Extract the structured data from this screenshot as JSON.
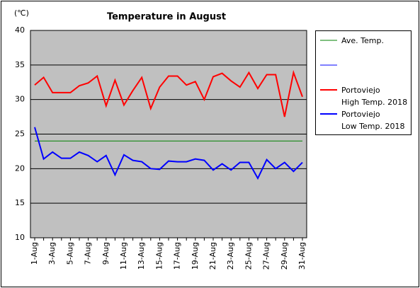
{
  "chart_data": {
    "type": "line",
    "title": "Temperature in August",
    "y_unit": "(℃)",
    "categories": [
      "1-Aug",
      null,
      "3-Aug",
      null,
      "5-Aug",
      null,
      "7-Aug",
      null,
      "9-Aug",
      null,
      "11-Aug",
      null,
      "13-Aug",
      null,
      "15-Aug",
      null,
      "17-Aug",
      null,
      "19-Aug",
      null,
      "21-Aug",
      null,
      "23-Aug",
      null,
      "25-Aug",
      null,
      "27-Aug",
      null,
      "29-Aug",
      null,
      "31-Aug"
    ],
    "series": [
      {
        "name": "Ave. Temp.",
        "color": "#008000",
        "values": [
          24,
          24,
          24,
          24,
          24,
          24,
          24,
          24,
          24,
          24,
          24,
          24,
          24,
          24,
          24,
          24,
          24,
          24,
          24,
          24,
          24,
          24,
          24,
          24,
          24,
          24,
          24,
          24,
          24,
          24,
          24
        ]
      },
      {
        "name": "Portoviejo\nHigh Temp. 2018",
        "color": "#ff0000",
        "values": [
          32.1,
          33.2,
          31.0,
          31.0,
          31.0,
          32.0,
          32.4,
          33.4,
          29.1,
          32.8,
          29.2,
          31.3,
          33.2,
          28.7,
          31.8,
          33.4,
          33.4,
          32.1,
          32.6,
          30.0,
          33.3,
          33.8,
          32.7,
          31.8,
          33.9,
          31.6,
          33.6,
          33.6,
          27.5,
          33.9,
          30.4
        ]
      },
      {
        "name": "Portoviejo\nLow Temp. 2018",
        "color": "#0000ff",
        "values": [
          26.0,
          21.4,
          22.4,
          21.5,
          21.5,
          22.4,
          21.9,
          21.0,
          21.9,
          19.1,
          22.0,
          21.2,
          21.0,
          20.0,
          19.9,
          21.1,
          21.0,
          21.0,
          21.4,
          21.2,
          19.8,
          20.7,
          19.8,
          20.9,
          20.9,
          18.6,
          21.3,
          20.0,
          20.9,
          19.6,
          20.9
        ]
      }
    ],
    "ylim": [
      10,
      40
    ],
    "yticks": [
      10,
      15,
      20,
      25,
      30,
      35,
      40
    ],
    "grid": true
  }
}
